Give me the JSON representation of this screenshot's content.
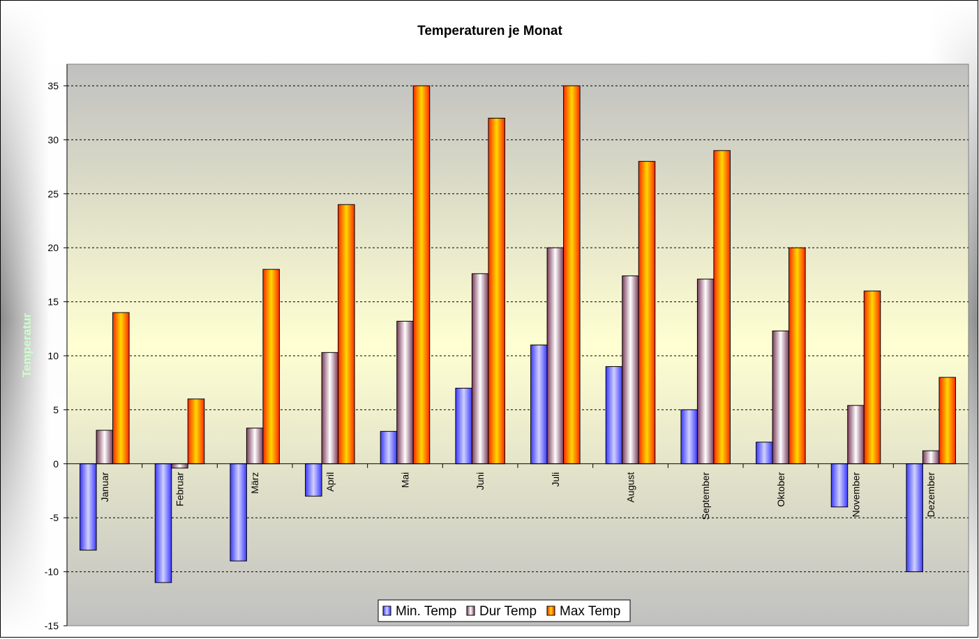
{
  "chart_data": {
    "type": "bar",
    "title": "Temperaturen je Monat",
    "xlabel": "",
    "ylabel": "Temperatur",
    "ylim": [
      -15,
      37
    ],
    "yticks": [
      -15,
      -10,
      -5,
      0,
      5,
      10,
      15,
      20,
      25,
      30,
      35
    ],
    "grid": true,
    "legend_position": "bottom",
    "categories": [
      "Januar",
      "Februar",
      "März",
      "April",
      "Mai",
      "Juni",
      "Juli",
      "August",
      "September",
      "Oktober",
      "November",
      "Dezember"
    ],
    "series": [
      {
        "name": "Min. Temp",
        "values": [
          -8,
          -11,
          -9,
          -3,
          3,
          7,
          11,
          9,
          5,
          2,
          -4,
          -10
        ],
        "colors": [
          "#3a3aff",
          "#d0d0ff"
        ]
      },
      {
        "name": "Dur Temp",
        "values": [
          3.1,
          -0.4,
          3.3,
          10.3,
          13.2,
          17.6,
          20,
          17.4,
          17.1,
          12.3,
          5.4,
          1.2
        ],
        "colors": [
          "#7a3a5a",
          "#ffffff"
        ]
      },
      {
        "name": "Max Temp",
        "values": [
          14,
          6,
          18,
          24,
          35,
          32,
          35,
          28,
          29,
          20,
          16,
          8
        ],
        "colors": [
          "#ff2a00",
          "#ffd800"
        ]
      }
    ]
  }
}
